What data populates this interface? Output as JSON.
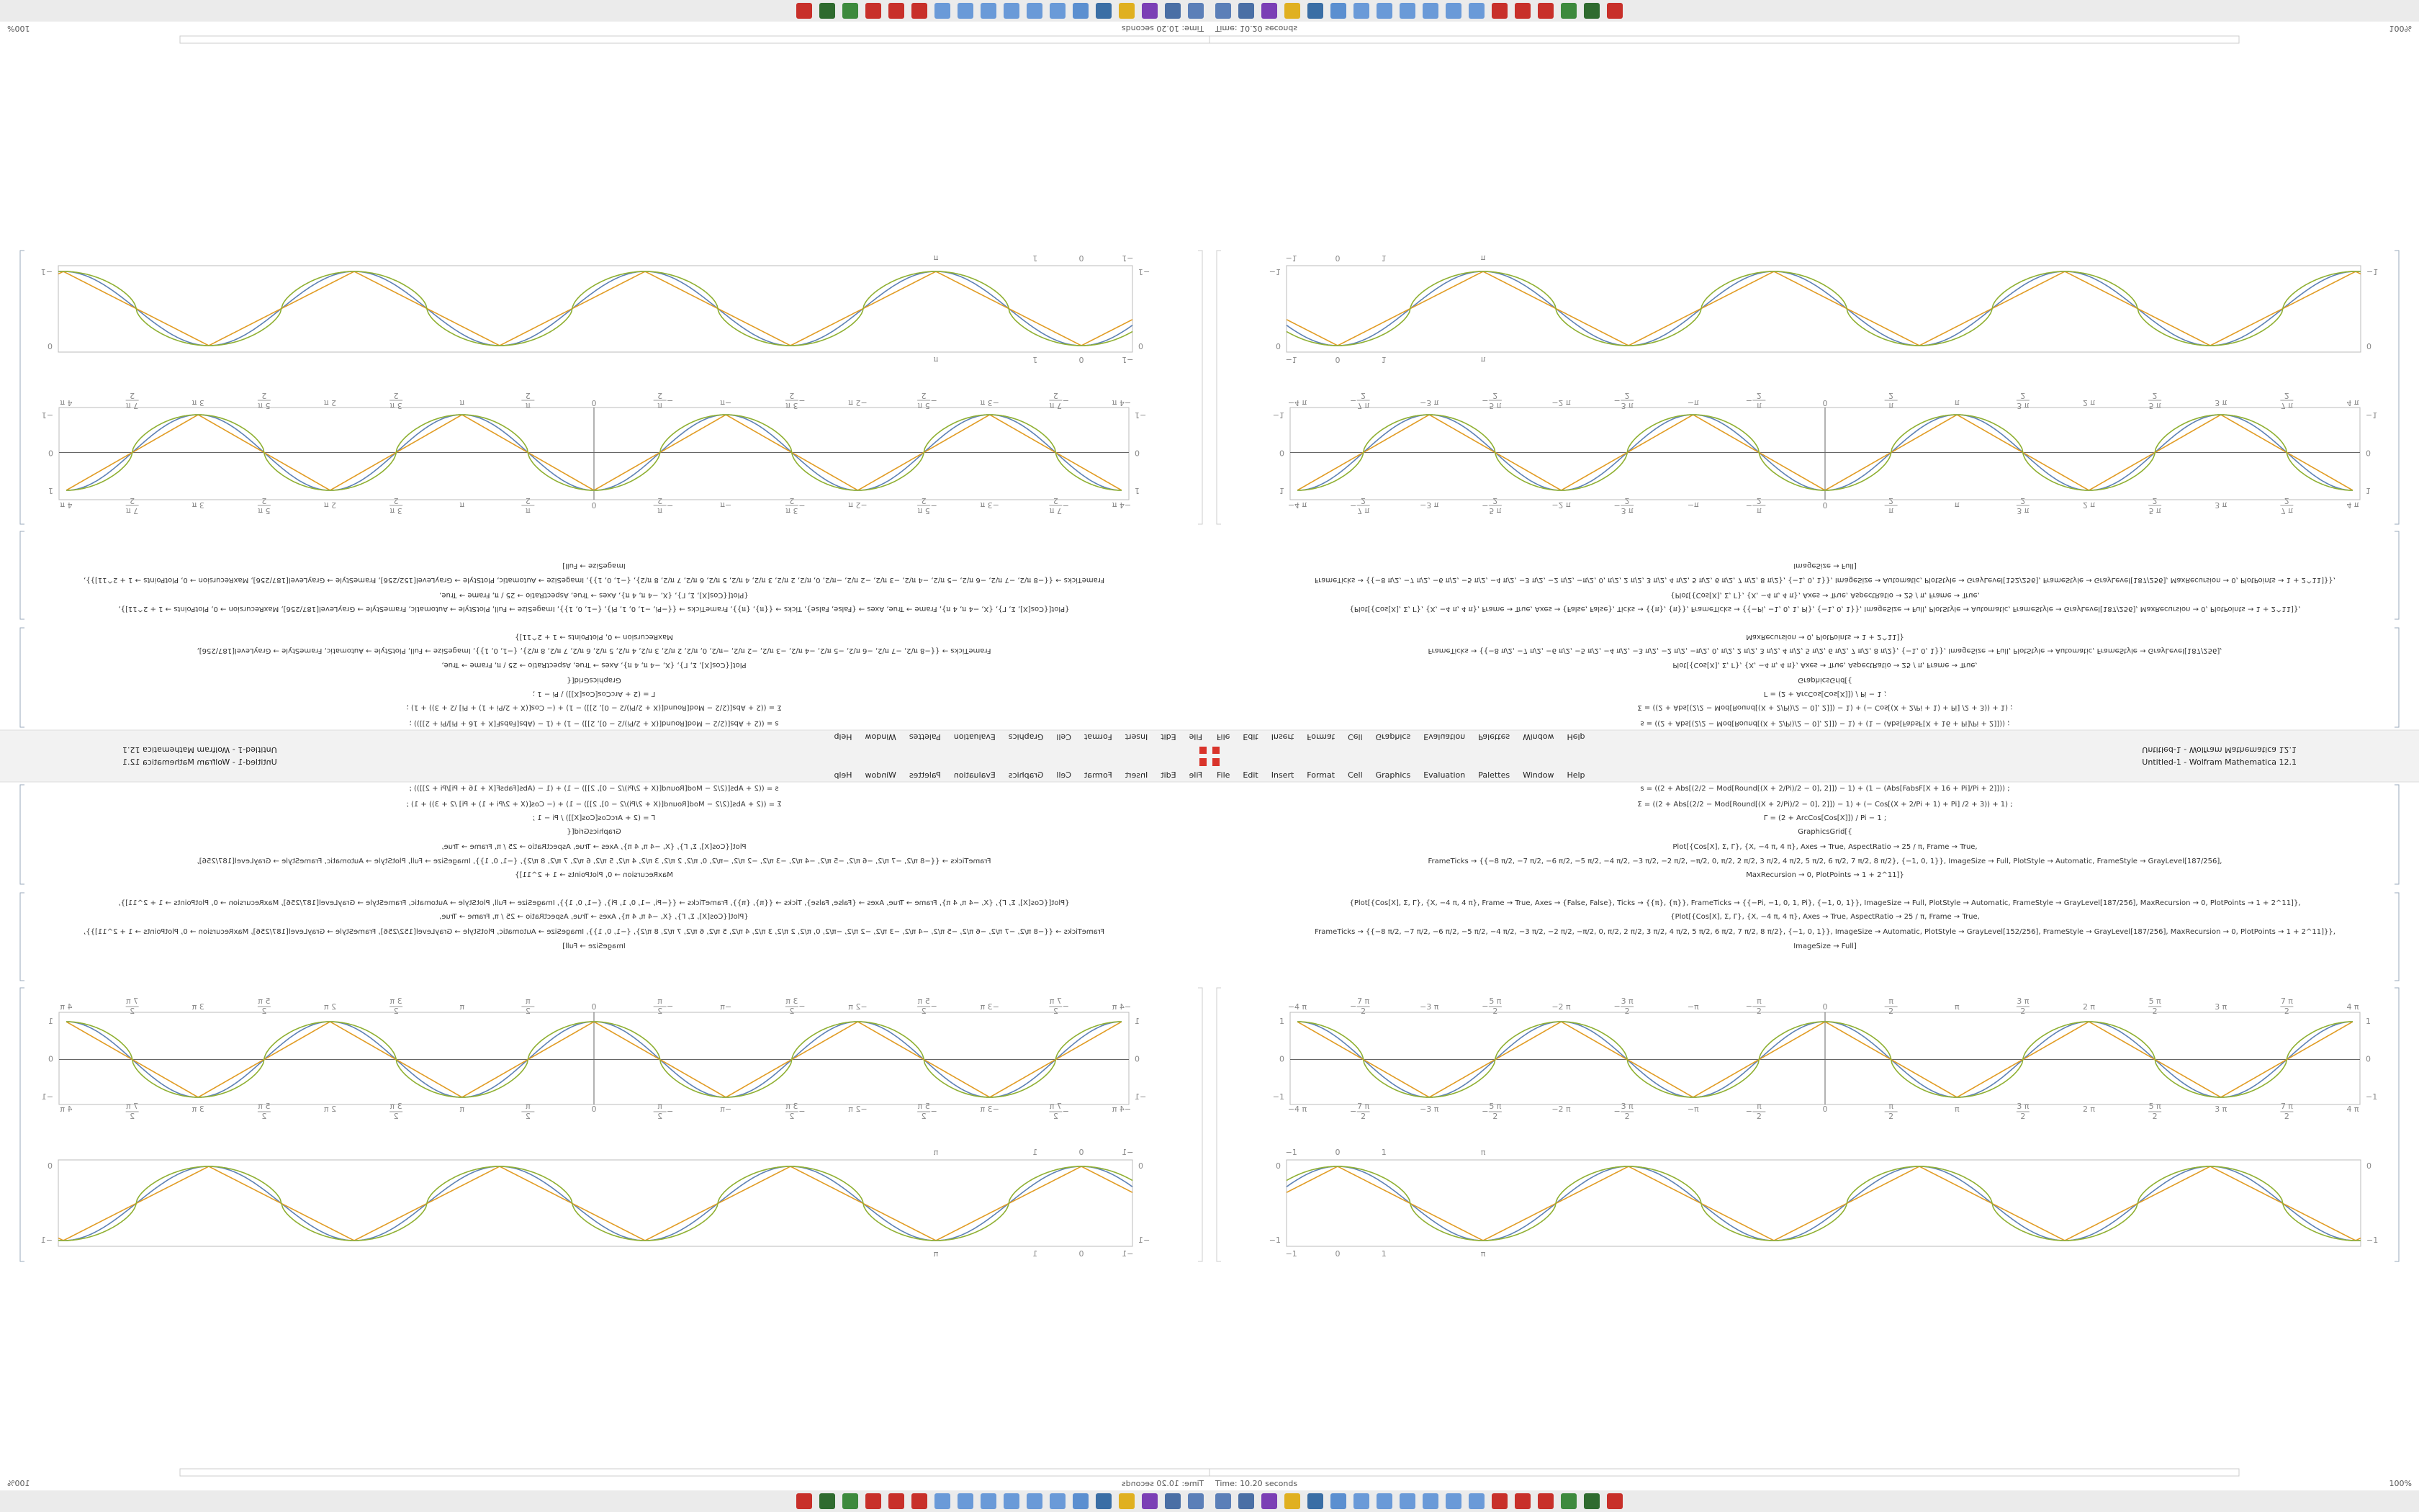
{
  "window": {
    "title": "Untitled-1 - Wolfram Mathematica 12.1",
    "menu": [
      "File",
      "Edit",
      "Insert",
      "Format",
      "Cell",
      "Graphics",
      "Evaluation",
      "Palettes",
      "Window",
      "Help"
    ],
    "status": "Time: 10.20 seconds",
    "zoom": "100%"
  },
  "cells": [
    [
      "s = ((2 + Abs[(2/2 − Mod[Round[(X + 2/Pi)/2 − 0], 2]]) − 1) + (1 − (Abs[FabsF[X + 16 + Pi]/Pi + 2]])) ;",
      "Σ = ((2 + Abs[(2/2 − Mod[Round[(X + 2/Pi)/2 − 0], 2]]) − 1) + (− Cos[(X + 2/Pi + 1) + Pi] /2 + 3)) + 1) ;",
      "Γ = (2 + ArcCos[Cos[X]]) / Pi − 1 ;",
      "GraphicsGrid[{",
      "Plot[{Cos[X], Σ, Γ}, {X, −4 π, 4 π}, Axes → True, AspectRatio → 25 / π, Frame → True,",
      "FrameTicks → {{−8 π/2, −7 π/2, −6 π/2, −5 π/2, −4 π/2, −3 π/2, −2 π/2, −π/2, 0, π/2, 2 π/2, 3 π/2, 4 π/2, 5 π/2, 6 π/2, 7 π/2, 8 π/2}, {−1, 0, 1}}, ImageSize → Full, PlotStyle → Automatic, FrameStyle → GrayLevel[187/256],",
      "MaxRecursion → 0, PlotPoints → 1 + 2^11]}"
    ],
    [
      "{Plot[{Cos[X], Σ, Γ}, {X, −4 π, 4 π}, Frame → True, Axes → {False, False}, Ticks → {{π}, {π}}, FrameTicks → {{−Pi, −1, 0, 1, Pi}, {−1, 0, 1}}, ImageSize → Full, PlotStyle → Automatic, FrameStyle → GrayLevel[187/256], MaxRecursion → 0, PlotPoints → 1 + 2^11]},",
      "{Plot[{Cos[X], Σ, Γ}, {X, −4 π, 4 π}, Axes → True, AspectRatio → 25 / π, Frame → True,",
      "FrameTicks → {{−8 π/2, −7 π/2, −6 π/2, −5 π/2, −4 π/2, −3 π/2, −2 π/2, −π/2, 0, π/2, 2 π/2, 3 π/2, 4 π/2, 5 π/2, 6 π/2, 7 π/2, 8 π/2}, {−1, 0, 1}}, ImageSize → Automatic, PlotStyle → GrayLevel[152/256], FrameStyle → GrayLevel[187/256], MaxRecursion → 0, PlotPoints → 1 + 2^11]}},",
      "ImageSize → Full]"
    ]
  ],
  "plot_axes": {
    "x_labels": [
      "−4 π",
      {
        "num": "7 π",
        "den": "2",
        "sign": "−"
      },
      "−3 π",
      {
        "num": "5 π",
        "den": "2",
        "sign": "−"
      },
      "−2 π",
      {
        "num": "3 π",
        "den": "2",
        "sign": "−"
      },
      "−π",
      {
        "num": "π",
        "den": "2",
        "sign": "−"
      },
      "0",
      {
        "num": "π",
        "den": "2"
      },
      "π",
      {
        "num": "3 π",
        "den": "2"
      },
      "2 π",
      {
        "num": "5 π",
        "den": "2"
      },
      "3 π",
      {
        "num": "7 π",
        "den": "2"
      },
      "4 π"
    ],
    "y_labels": [
      "1",
      "0",
      "−1"
    ],
    "colors": [
      "#5e81b5",
      "#e19c24",
      "#8fb032"
    ]
  },
  "plot_frame": {
    "x_labels": [
      "−1",
      "0",
      "1",
      "π"
    ],
    "y_labels": [
      "0",
      "−1"
    ]
  }
}
